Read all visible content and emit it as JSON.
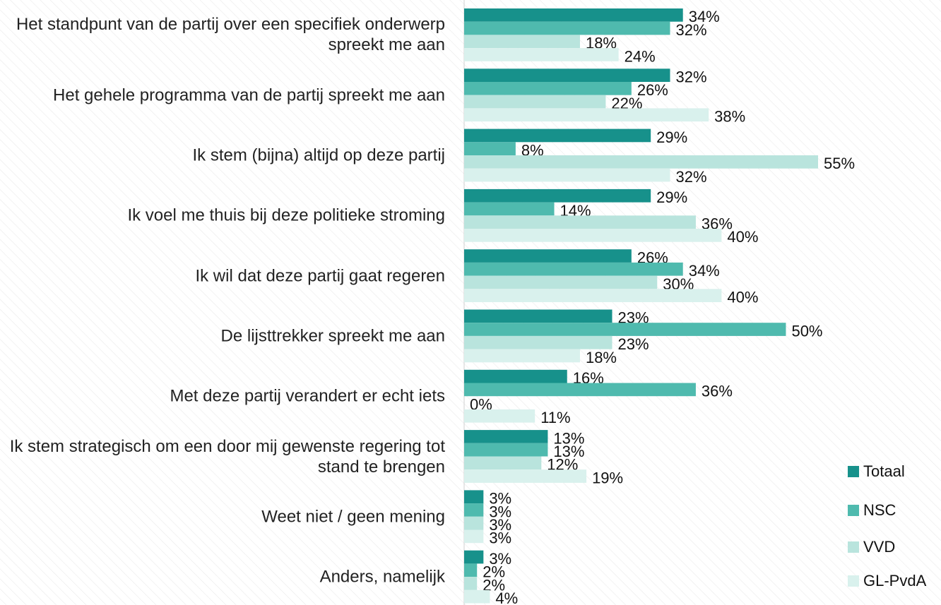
{
  "chart_data": {
    "type": "bar",
    "orientation": "horizontal",
    "categories": [
      "Het standpunt van de partij over een specifiek onderwerp spreekt me aan",
      "Het gehele programma van de partij spreekt me aan",
      "Ik stem (bijna) altijd op deze partij",
      "Ik voel me thuis bij deze politieke stroming",
      "Ik wil dat deze partij gaat regeren",
      "De lijsttrekker spreekt me aan",
      "Met deze partij verandert er echt iets",
      "Ik stem strategisch om een door mij gewenste regering tot stand te brengen",
      "Weet niet / geen mening",
      "Anders, namelijk"
    ],
    "series": [
      {
        "name": "Totaal",
        "color": "#17918b",
        "values": [
          34,
          32,
          29,
          29,
          26,
          23,
          16,
          13,
          3,
          3
        ],
        "value_labels": [
          "34%",
          "32%",
          "29%",
          "29%",
          "26%",
          "23%",
          "16%",
          "13%",
          "3%",
          "3%"
        ]
      },
      {
        "name": "NSC",
        "color": "#4fbaae",
        "values": [
          32,
          26,
          8,
          14,
          34,
          50,
          36,
          13,
          3,
          2
        ],
        "value_labels": [
          "32%",
          "26%",
          "8%",
          "14%",
          "34%",
          "50%",
          "36%",
          "13%",
          "3%",
          "2%"
        ]
      },
      {
        "name": "VVD",
        "color": "#b9e4dd",
        "values": [
          18,
          22,
          55,
          36,
          30,
          23,
          0,
          12,
          3,
          2
        ],
        "value_labels": [
          "18%",
          "22%",
          "55%",
          "36%",
          "30%",
          "23%",
          "0%",
          "12%",
          "3%",
          "2%"
        ]
      },
      {
        "name": "GL-PvdA",
        "color": "#d9f1ed",
        "values": [
          24,
          38,
          32,
          40,
          40,
          18,
          11,
          19,
          3,
          4
        ],
        "value_labels": [
          "24%",
          "38%",
          "32%",
          "40%",
          "40%",
          "18%",
          "11%",
          "19%",
          "3%",
          "4%"
        ]
      }
    ],
    "legend": "bottom-right"
  }
}
